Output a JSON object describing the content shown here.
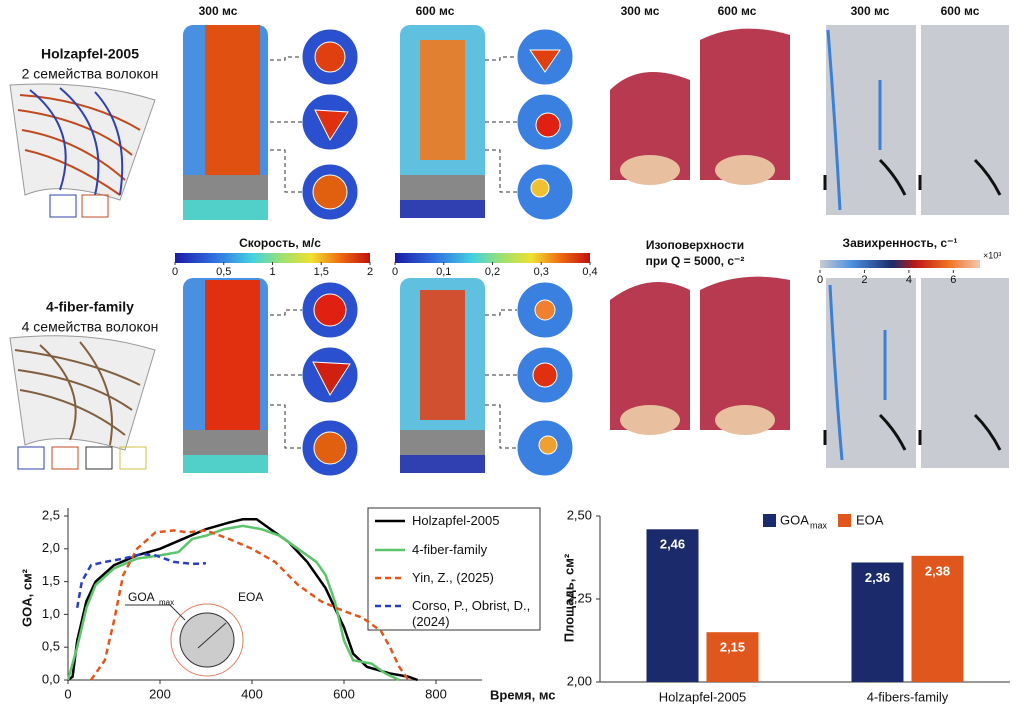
{
  "figure": {
    "time_labels": [
      "300 мс",
      "600 мс",
      "300 мс",
      "600 мс",
      "300 мс",
      "600 мс"
    ],
    "rows": [
      {
        "model": "Holzapfel-2005",
        "families": "2 семейства волокон"
      },
      {
        "model": "4-fiber-family",
        "families": "4 семейства волокон"
      }
    ],
    "velocity_title": "Скорость, м/с",
    "colorbars": [
      {
        "lim": [
          0,
          2
        ],
        "ticks": [
          0,
          {
            "value": 0.5,
            "label": "0,5"
          },
          1,
          {
            "value": 1.5,
            "label": "1,5"
          },
          2
        ]
      },
      {
        "lim": [
          0,
          0.4
        ],
        "ticks": [
          0,
          {
            "value": 0.1,
            "label": "0,1"
          },
          {
            "value": 0.2,
            "label": "0,2"
          },
          {
            "value": 0.3,
            "label": "0,3"
          },
          {
            "value": 0.4,
            "label": "0,4"
          }
        ]
      },
      {
        "title": "Завихренность, с⁻¹",
        "lim": [
          0,
          7.2
        ],
        "ticks": [
          0,
          2,
          4,
          6
        ],
        "multiplier": "×10³"
      }
    ],
    "isosurface_title": [
      "Изоповерхности",
      "при Q = 5000, с⁻²"
    ]
  },
  "chart_data": [
    {
      "type": "line",
      "x_label": "Время, мс",
      "y_label": "GOA, см²",
      "xlim": [
        0,
        900
      ],
      "xticks": [
        0,
        200,
        400,
        600,
        800
      ],
      "ylim": [
        0,
        2.5
      ],
      "yticks": [
        {
          "value": 0,
          "label": "0,0"
        },
        {
          "value": 0.5,
          "label": "0,5"
        },
        {
          "value": 1,
          "label": "1,0"
        },
        {
          "value": 1.5,
          "label": "1,5"
        },
        {
          "value": 2,
          "label": "2,0"
        },
        {
          "value": 2.5,
          "label": "2,5"
        }
      ],
      "annotations": {
        "goa": "GOA",
        "goa_sub": "max",
        "eoa": "EOA"
      },
      "series": [
        {
          "name": "Holzapfel-2005",
          "color": "#000000",
          "dashed": false,
          "x": [
            0,
            10,
            20,
            40,
            60,
            100,
            150,
            200,
            250,
            300,
            350,
            380,
            410,
            440,
            480,
            520,
            560,
            600,
            620,
            650,
            700,
            740,
            760
          ],
          "values": [
            0,
            0.05,
            0.6,
            1.2,
            1.5,
            1.75,
            1.9,
            2.0,
            2.15,
            2.3,
            2.4,
            2.45,
            2.45,
            2.3,
            2.1,
            1.8,
            1.4,
            0.8,
            0.4,
            0.2,
            0.1,
            0.05,
            0
          ]
        },
        {
          "name": "4-fiber-family",
          "color": "#5cc46a",
          "dashed": false,
          "x": [
            0,
            20,
            40,
            60,
            100,
            150,
            200,
            240,
            270,
            300,
            340,
            380,
            420,
            460,
            500,
            540,
            560,
            580,
            600,
            620,
            660,
            690,
            720
          ],
          "values": [
            0,
            0.5,
            1.1,
            1.45,
            1.7,
            1.85,
            1.9,
            1.95,
            2.15,
            2.2,
            2.3,
            2.35,
            2.3,
            2.2,
            2.0,
            1.8,
            1.6,
            1.2,
            0.6,
            0.3,
            0.25,
            0.1,
            0
          ]
        },
        {
          "name": "Yin, Z., (2025)",
          "color": "#e0571e",
          "dashed": true,
          "x": [
            50,
            80,
            100,
            120,
            150,
            190,
            230,
            260,
            300,
            350,
            400,
            450,
            500,
            550,
            600,
            640,
            680,
            700,
            720,
            740
          ],
          "values": [
            0,
            0.3,
            0.9,
            1.6,
            2.0,
            2.25,
            2.28,
            2.25,
            2.28,
            2.15,
            2.0,
            1.8,
            1.45,
            1.2,
            1.05,
            0.95,
            0.75,
            0.5,
            0.2,
            0
          ]
        },
        {
          "name": "Corso, P., Obrist, D., (2024)",
          "color": "#2a3fbf",
          "dashed": true,
          "x": [
            20,
            30,
            50,
            80,
            120,
            160,
            190,
            230,
            270,
            300
          ],
          "values": [
            1.1,
            1.5,
            1.75,
            1.8,
            1.85,
            1.92,
            1.9,
            1.8,
            1.77,
            1.78
          ]
        }
      ]
    },
    {
      "type": "bar",
      "y_label": "Площадь, см²",
      "categories": [
        "Holzapfel-2005",
        "4-fibers-family"
      ],
      "ylim": [
        2.0,
        2.5
      ],
      "yticks": [
        {
          "value": 2.0,
          "label": "2,00"
        },
        {
          "value": 2.25,
          "label": "2,25"
        },
        {
          "value": 2.5,
          "label": "2,50"
        }
      ],
      "series": [
        {
          "name": "GOA",
          "name_subscript": "max",
          "color": "#1b2a6b",
          "values": [
            2.46,
            2.36
          ],
          "value_labels": [
            "2,46",
            "2,36"
          ]
        },
        {
          "name": "EOA",
          "color": "#e0571e",
          "values": [
            2.15,
            2.38
          ],
          "value_labels": [
            "2,15",
            "2,38"
          ]
        }
      ]
    }
  ]
}
